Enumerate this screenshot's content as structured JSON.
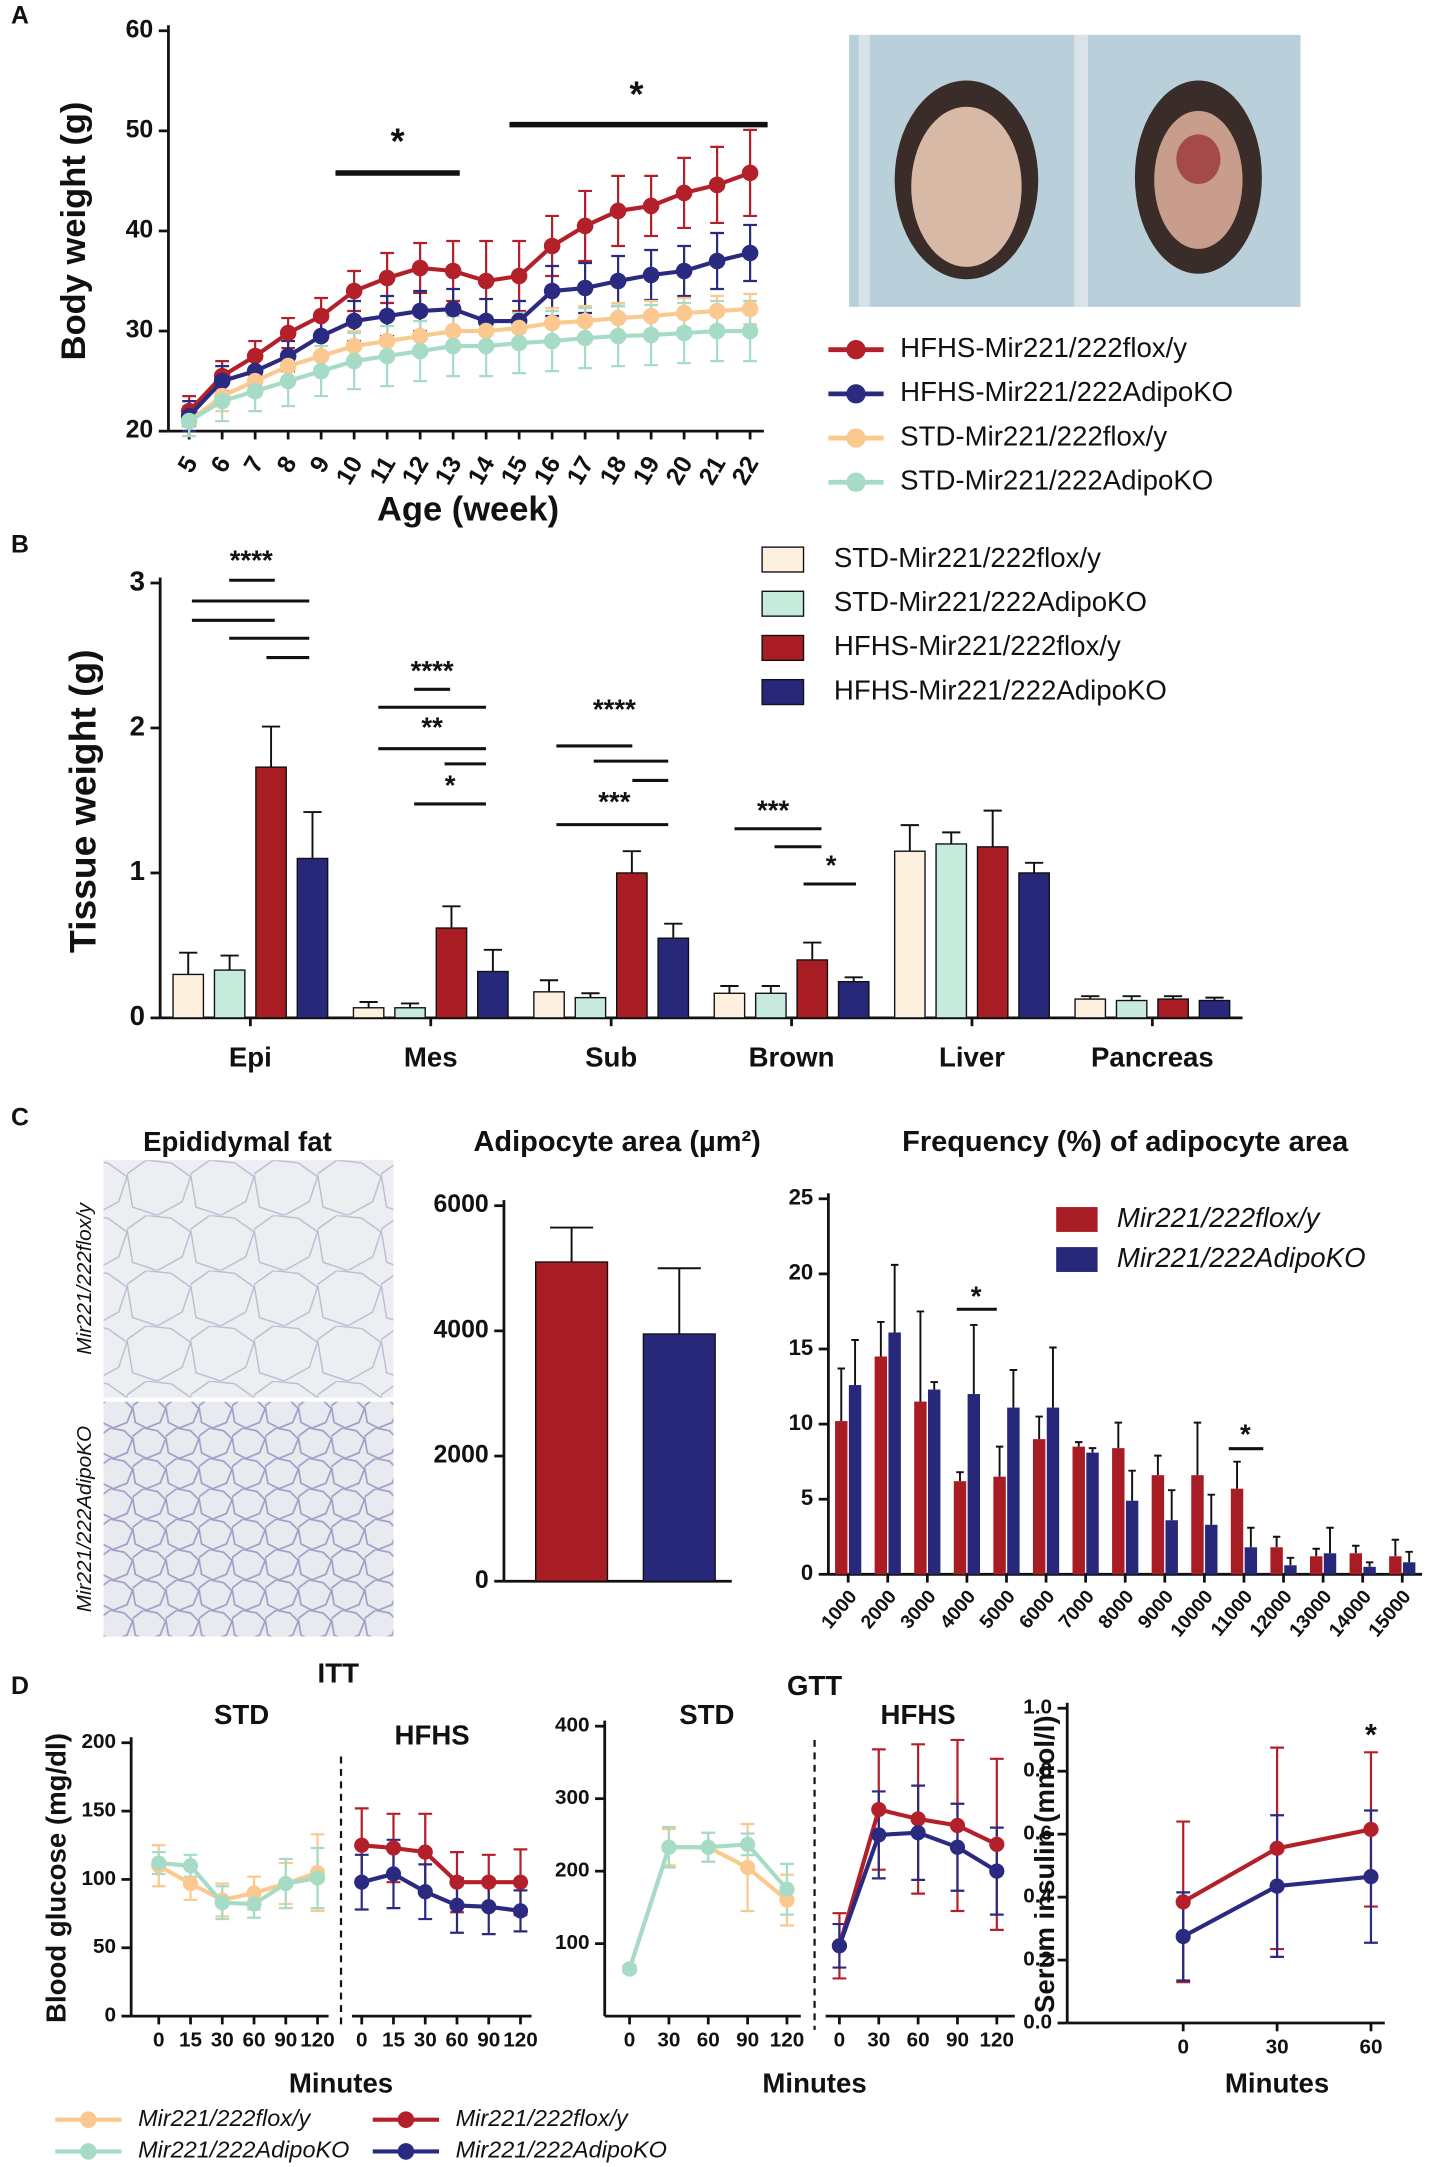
{
  "panel_labels": [
    "A",
    "B",
    "C",
    "D"
  ],
  "histology": {
    "title": "Epididymal fat",
    "labels": [
      "Mir221/222flox/y",
      "Mir221/222AdipoKO"
    ]
  },
  "legend_d": [
    {
      "name": "Mir221/222flox/y",
      "color": "#fbc98f"
    },
    {
      "name": "Mir221/222AdipoKO",
      "color": "#a6dcc6"
    },
    {
      "name": "Mir221/222flox/y",
      "color": "#b3202a"
    },
    {
      "name": "Mir221/222AdipoKO",
      "color": "#2a2a80"
    }
  ],
  "chart_data": [
    {
      "type": "line",
      "y_label": "Body weight (g)",
      "x_label": "Age (week)",
      "categories": [
        "5",
        "6",
        "7",
        "8",
        "9",
        "10",
        "11",
        "12",
        "13",
        "14",
        "15",
        "16",
        "17",
        "18",
        "19",
        "20",
        "21",
        "22"
      ],
      "ylim": [
        20,
        60
      ],
      "yticks": [
        20,
        30,
        40,
        50,
        60
      ],
      "annotations": [
        "*",
        "*"
      ],
      "series": [
        {
          "name": "HFHS-Mir221/222flox/y",
          "color": "#b3202a",
          "values": [
            22,
            25.5,
            27.5,
            29.8,
            31.5,
            34,
            35.3,
            36.3,
            36,
            35,
            35.5,
            38.5,
            40.5,
            42,
            42.5,
            43.8,
            44.6,
            45.8
          ],
          "errors": [
            1.5,
            1.5,
            1.5,
            1.5,
            1.8,
            2,
            2.5,
            2.5,
            3,
            4,
            3.5,
            3,
            3.5,
            3.5,
            3,
            3.5,
            3.8,
            4.3
          ]
        },
        {
          "name": "HFHS-Mir221/222AdipoKO",
          "color": "#2a2a80",
          "values": [
            21.5,
            25,
            26,
            27.5,
            29.5,
            31,
            31.5,
            32,
            32.2,
            31,
            31,
            34,
            34.3,
            35,
            35.6,
            36,
            37,
            37.8
          ],
          "errors": [
            1.5,
            1.5,
            1.5,
            1.5,
            1.8,
            2,
            2,
            2,
            2,
            2.2,
            2,
            2.5,
            2.5,
            2.5,
            2.5,
            2.5,
            2.8,
            2.8
          ]
        },
        {
          "name": "STD-Mir221/222flox/y",
          "color": "#fbc98f",
          "values": [
            21,
            23.5,
            25,
            26.5,
            27.5,
            28.5,
            29,
            29.5,
            30,
            30,
            30.3,
            30.8,
            31,
            31.3,
            31.5,
            31.8,
            32,
            32.2
          ],
          "errors": [
            1.5,
            1.5,
            1.5,
            1.5,
            1.5,
            1.5,
            1.5,
            1.5,
            1.5,
            1.5,
            1.5,
            1.5,
            1.5,
            1.5,
            1.5,
            1.5,
            1.5,
            1.5
          ]
        },
        {
          "name": "STD-Mir221/222AdipoKO",
          "color": "#a6dcc6",
          "values": [
            21,
            23,
            24,
            25,
            26,
            27,
            27.5,
            28,
            28.5,
            28.5,
            28.8,
            29,
            29.3,
            29.5,
            29.6,
            29.8,
            30,
            30
          ],
          "errors": [
            1.5,
            2,
            2,
            2.5,
            2.5,
            2.8,
            3,
            3,
            3,
            3,
            3,
            3,
            3,
            3,
            3,
            3,
            3,
            3
          ]
        }
      ]
    },
    {
      "type": "bar",
      "y_label": "Tissue weight (g)",
      "categories": [
        "Epi",
        "Mes",
        "Sub",
        "Brown",
        "Liver",
        "Pancreas"
      ],
      "ylim": [
        0,
        3
      ],
      "yticks": [
        0,
        1,
        2,
        3
      ],
      "annotations": [
        "****",
        "****",
        "**",
        "*",
        "****",
        "***",
        "***",
        "*"
      ],
      "series": [
        {
          "name": "STD-Mir221/222flox/y",
          "color": "#fdf0df",
          "values": [
            0.3,
            0.07,
            0.18,
            0.17,
            1.15,
            0.13
          ],
          "errors": [
            0.15,
            0.04,
            0.08,
            0.05,
            0.18,
            0.02
          ]
        },
        {
          "name": "STD-Mir221/222AdipoKO",
          "color": "#c6eadb",
          "values": [
            0.33,
            0.07,
            0.14,
            0.17,
            1.2,
            0.12
          ],
          "errors": [
            0.1,
            0.03,
            0.03,
            0.05,
            0.08,
            0.03
          ]
        },
        {
          "name": "HFHS-Mir221/222flox/y",
          "color": "#a81c24",
          "values": [
            1.73,
            0.62,
            1.0,
            0.4,
            1.18,
            0.13
          ],
          "errors": [
            0.28,
            0.15,
            0.15,
            0.12,
            0.25,
            0.02
          ]
        },
        {
          "name": "HFHS-Mir221/222AdipoKO",
          "color": "#27287a",
          "values": [
            1.1,
            0.32,
            0.55,
            0.25,
            1.0,
            0.12
          ],
          "errors": [
            0.32,
            0.15,
            0.1,
            0.03,
            0.07,
            0.02
          ]
        }
      ]
    },
    {
      "type": "bar",
      "title": "Adipocyte area (µm²)",
      "values": [
        5100,
        3950
      ],
      "errors": [
        550,
        1050
      ],
      "colors": [
        "#a81c24",
        "#27287a"
      ],
      "ylim": [
        0,
        6000
      ],
      "yticks": [
        0,
        2000,
        4000,
        6000
      ]
    },
    {
      "type": "bar",
      "title": "Frequency (%) of adipocyte area",
      "categories": [
        "1000",
        "2000",
        "3000",
        "4000",
        "5000",
        "6000",
        "7000",
        "8000",
        "9000",
        "10000",
        "11000",
        "12000",
        "13000",
        "14000",
        "15000"
      ],
      "ylim": [
        0,
        25
      ],
      "yticks": [
        0,
        5,
        10,
        15,
        20,
        25
      ],
      "annotations": [
        "*",
        "*"
      ],
      "series": [
        {
          "name": "Mir221/222flox/y",
          "color": "#a81c24",
          "values": [
            10.2,
            14.5,
            11.5,
            6.2,
            6.5,
            9,
            8.5,
            8.4,
            6.6,
            6.6,
            5.7,
            1.8,
            1.2,
            1.4,
            1.2
          ],
          "errors": [
            3.5,
            2.3,
            6,
            0.6,
            2,
            1.5,
            0.3,
            1.7,
            1.3,
            3.5,
            1.8,
            0.7,
            0.5,
            0.5,
            1.1
          ]
        },
        {
          "name": "Mir221/222AdipoKO",
          "color": "#27287a",
          "values": [
            12.6,
            16.1,
            12.3,
            12,
            11.1,
            11.1,
            8.1,
            4.9,
            3.6,
            3.3,
            1.8,
            0.6,
            1.4,
            0.5,
            0.8
          ],
          "errors": [
            3,
            4.5,
            0.5,
            4.6,
            2.5,
            4,
            0.3,
            2,
            2,
            2,
            1.3,
            0.5,
            1.7,
            0.3,
            0.7
          ]
        }
      ]
    },
    {
      "type": "line",
      "title": "ITT",
      "y_label": "Blood glucose (mg/dl)",
      "x_label": "Minutes",
      "ylim": [
        0,
        200
      ],
      "yticks": [
        0,
        50,
        100,
        150,
        200
      ],
      "panels": [
        {
          "label": "STD",
          "categories": [
            "0",
            "15",
            "30",
            "60",
            "90",
            "120"
          ],
          "series": [
            {
              "color": "#fbc98f",
              "values": [
                110,
                97,
                85,
                90,
                97,
                105
              ],
              "errors": [
                15,
                12,
                12,
                12,
                15,
                28
              ]
            },
            {
              "color": "#a6dcc6",
              "values": [
                112,
                110,
                83,
                82,
                97,
                101
              ],
              "errors": [
                8,
                8,
                12,
                10,
                18,
                22
              ]
            }
          ]
        },
        {
          "label": "HFHS",
          "categories": [
            "0",
            "15",
            "30",
            "60",
            "90",
            "120"
          ],
          "series": [
            {
              "color": "#b3202a",
              "values": [
                125,
                123,
                120,
                98,
                98,
                98
              ],
              "errors": [
                27,
                25,
                28,
                22,
                20,
                24
              ]
            },
            {
              "color": "#2a2a80",
              "values": [
                98,
                104,
                91,
                81,
                80,
                77
              ],
              "errors": [
                20,
                25,
                20,
                20,
                20,
                15
              ]
            }
          ]
        }
      ]
    },
    {
      "type": "line",
      "title": "GTT",
      "x_label": "Minutes",
      "ylim": [
        0,
        400
      ],
      "yticks": [
        100,
        200,
        300,
        400
      ],
      "panels": [
        {
          "label": "STD",
          "categories": [
            "0",
            "30",
            "60",
            "90",
            "120"
          ],
          "series": [
            {
              "color": "#fbc98f",
              "values": [
                65,
                233,
                233,
                205,
                160
              ],
              "errors": [
                5,
                25,
                20,
                60,
                35
              ]
            },
            {
              "color": "#a6dcc6",
              "values": [
                65,
                233,
                233,
                237,
                175
              ],
              "errors": [
                5,
                28,
                20,
                15,
                35
              ]
            }
          ]
        },
        {
          "label": "HFHS",
          "categories": [
            "0",
            "30",
            "60",
            "90",
            "120"
          ],
          "series": [
            {
              "color": "#b3202a",
              "values": [
                97,
                285,
                272,
                263,
                237
              ],
              "errors": [
                45,
                83,
                103,
                118,
                118
              ]
            },
            {
              "color": "#2a2a80",
              "values": [
                97,
                250,
                253,
                233,
                200
              ],
              "errors": [
                30,
                60,
                65,
                60,
                60
              ]
            }
          ]
        }
      ]
    },
    {
      "type": "line",
      "y_label": "Serum insulin (mmol/l)",
      "x_label": "Minutes",
      "categories": [
        "0",
        "30",
        "60"
      ],
      "ylim": [
        0,
        1
      ],
      "yticks": [
        {
          "value": 0,
          "label": "0.0"
        },
        {
          "value": 0.2,
          "label": "0.2"
        },
        {
          "value": 0.4,
          "label": "0.4"
        },
        {
          "value": 0.6,
          "label": "0.6"
        },
        {
          "value": 0.8,
          "label": "0.8"
        },
        {
          "value": 1,
          "label": "1.0"
        }
      ],
      "annotations": [
        "*"
      ],
      "series": [
        {
          "color": "#b3202a",
          "values": [
            0.385,
            0.555,
            0.615
          ],
          "errors": [
            0.255,
            0.32,
            0.245
          ]
        },
        {
          "color": "#2a2a80",
          "values": [
            0.275,
            0.435,
            0.465
          ],
          "errors": [
            0.14,
            0.225,
            0.21
          ]
        }
      ]
    }
  ]
}
